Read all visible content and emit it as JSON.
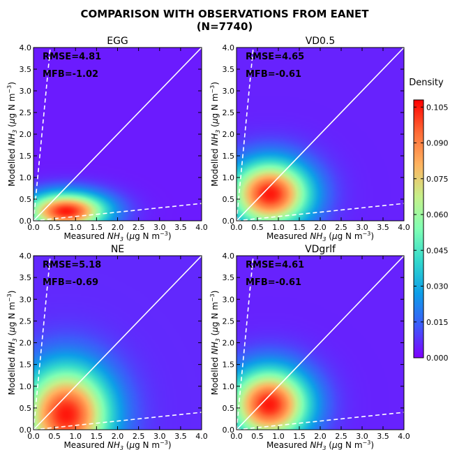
{
  "title": {
    "line1": "COMPARISON WITH OBSERVATIONS FROM EANET",
    "line2": "(N=7740)"
  },
  "chart_data": {
    "type": "heatmap",
    "xlabel": {
      "pre": "Measured ",
      "sym": "NH",
      "sub": "3",
      "unit_open": " (",
      "mu": "μ",
      "unit_rest": "g N m",
      "sup": "−3",
      "unit_close": ")"
    },
    "ylabel": {
      "pre": "Modelled ",
      "sym": "NH",
      "sub": "3",
      "unit_open": " (",
      "mu": "μ",
      "unit_rest": "g N m",
      "sup": "−3",
      "unit_close": ")"
    },
    "xlim": [
      0,
      4
    ],
    "ylim": [
      0,
      4
    ],
    "ticks": [
      "0.0",
      "0.5",
      "1.0",
      "1.5",
      "2.0",
      "2.5",
      "3.0",
      "3.5",
      "4.0"
    ],
    "reference_lines": {
      "one_to_one": 1,
      "factor_10_upper": 10,
      "factor_10_lower": 0.1
    },
    "panels": [
      {
        "name": "EGG",
        "rmse": "RMSE=4.81",
        "mfb": "MFB=-1.02",
        "peak_x": 0.78,
        "peak_y": 0.22,
        "sx": 0.95,
        "sy": 0.42,
        "peak_density": 0.105,
        "base_density": 0.004
      },
      {
        "name": "VD0.5",
        "rmse": "RMSE=4.65",
        "mfb": "MFB=-0.61",
        "peak_x": 0.8,
        "peak_y": 0.62,
        "sx": 0.95,
        "sy": 0.75,
        "peak_density": 0.105,
        "base_density": 0.005
      },
      {
        "name": "NE",
        "rmse": "RMSE=5.18",
        "mfb": "MFB=-0.69",
        "peak_x": 0.78,
        "peak_y": 0.35,
        "sx": 1.05,
        "sy": 1.1,
        "peak_density": 0.105,
        "base_density": 0.006
      },
      {
        "name": "VDgrlf",
        "rmse": "RMSE=4.61",
        "mfb": "MFB=-0.61",
        "peak_x": 0.78,
        "peak_y": 0.58,
        "sx": 0.95,
        "sy": 0.82,
        "peak_density": 0.105,
        "base_density": 0.005
      }
    ],
    "colorbar": {
      "label": "Density",
      "min": 0.0,
      "max": 0.108,
      "ticks": [
        "0.000",
        "0.015",
        "0.030",
        "0.045",
        "0.060",
        "0.075",
        "0.090",
        "0.105"
      ],
      "tick_values": [
        0.0,
        0.015,
        0.03,
        0.045,
        0.06,
        0.075,
        0.09,
        0.105
      ],
      "colors": [
        "#7f00ff",
        "#3d5bfa",
        "#0d9ee8",
        "#32d8cc",
        "#80ffb4",
        "#c6f08a",
        "#ffb360",
        "#ff6a36",
        "#ff0000"
      ]
    }
  }
}
